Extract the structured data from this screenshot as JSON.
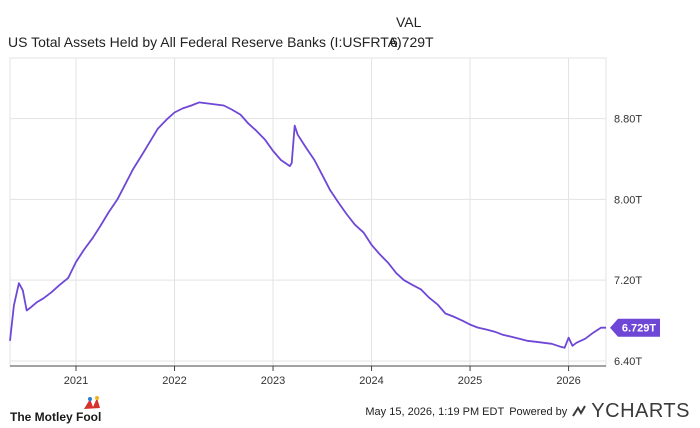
{
  "legend": {
    "column_header": "VAL",
    "series_name": "US Total Assets Held by All Federal Reserve Banks (I:USFRTA)",
    "series_value": "6.729T"
  },
  "footer": {
    "brand": "The Motley Fool",
    "timestamp": "May 15, 2026, 1:19 PM EDT",
    "powered_by": "Powered by",
    "ycharts": "YCHARTS"
  },
  "colors": {
    "line": "#6f47d6",
    "axis": "#444444",
    "grid": "#e3e3e3",
    "fool_red": "#d4322c"
  },
  "chart_data": {
    "type": "line",
    "title": "US Total Assets Held by All Federal Reserve Banks (I:USFRTA)",
    "ylabel": "",
    "xlabel": "",
    "x_unit": "year",
    "ylim": [
      6.35,
      9.4
    ],
    "xlim": [
      2020.33,
      2026.38
    ],
    "x_ticks": [
      2021,
      2022,
      2023,
      2024,
      2025,
      2026
    ],
    "x_tick_labels": [
      "2021",
      "2022",
      "2023",
      "2024",
      "2025",
      "2026"
    ],
    "y_ticks": [
      6.4,
      7.2,
      8.0,
      8.8
    ],
    "y_tick_labels": [
      "6.40T",
      "7.20T",
      "8.00T",
      "8.80T"
    ],
    "last_value_label": "6.729T",
    "last_value": 6.729,
    "grid": true,
    "series": [
      {
        "name": "US Total Assets Held by All Federal Reserve Banks (I:USFRTA)",
        "x": [
          2020.33,
          2020.37,
          2020.42,
          2020.46,
          2020.5,
          2020.54,
          2020.6,
          2020.67,
          2020.75,
          2020.83,
          2020.92,
          2021.0,
          2021.08,
          2021.17,
          2021.25,
          2021.33,
          2021.42,
          2021.5,
          2021.58,
          2021.67,
          2021.75,
          2021.83,
          2021.92,
          2022.0,
          2022.08,
          2022.17,
          2022.25,
          2022.33,
          2022.42,
          2022.5,
          2022.58,
          2022.67,
          2022.75,
          2022.83,
          2022.92,
          2023.0,
          2023.08,
          2023.17,
          2023.19,
          2023.22,
          2023.25,
          2023.33,
          2023.42,
          2023.5,
          2023.58,
          2023.67,
          2023.75,
          2023.83,
          2023.92,
          2024.0,
          2024.08,
          2024.17,
          2024.25,
          2024.33,
          2024.42,
          2024.5,
          2024.58,
          2024.67,
          2024.75,
          2024.83,
          2024.92,
          2025.0,
          2025.08,
          2025.17,
          2025.25,
          2025.33,
          2025.42,
          2025.5,
          2025.58,
          2025.67,
          2025.75,
          2025.83,
          2025.92,
          2025.96,
          2026.0,
          2026.04,
          2026.08,
          2026.17,
          2026.25,
          2026.33,
          2026.38
        ],
        "y": [
          6.6,
          6.95,
          7.17,
          7.1,
          6.9,
          6.93,
          6.98,
          7.02,
          7.08,
          7.15,
          7.22,
          7.38,
          7.5,
          7.62,
          7.74,
          7.87,
          8.0,
          8.15,
          8.3,
          8.44,
          8.57,
          8.7,
          8.79,
          8.86,
          8.9,
          8.93,
          8.96,
          8.95,
          8.94,
          8.93,
          8.89,
          8.84,
          8.75,
          8.68,
          8.59,
          8.48,
          8.39,
          8.33,
          8.36,
          8.73,
          8.64,
          8.52,
          8.39,
          8.24,
          8.09,
          7.96,
          7.85,
          7.75,
          7.67,
          7.55,
          7.46,
          7.37,
          7.27,
          7.2,
          7.15,
          7.11,
          7.03,
          6.96,
          6.87,
          6.84,
          6.8,
          6.76,
          6.73,
          6.71,
          6.69,
          6.66,
          6.64,
          6.62,
          6.6,
          6.59,
          6.58,
          6.57,
          6.54,
          6.53,
          6.63,
          6.55,
          6.58,
          6.62,
          6.68,
          6.73,
          6.729
        ]
      }
    ]
  }
}
